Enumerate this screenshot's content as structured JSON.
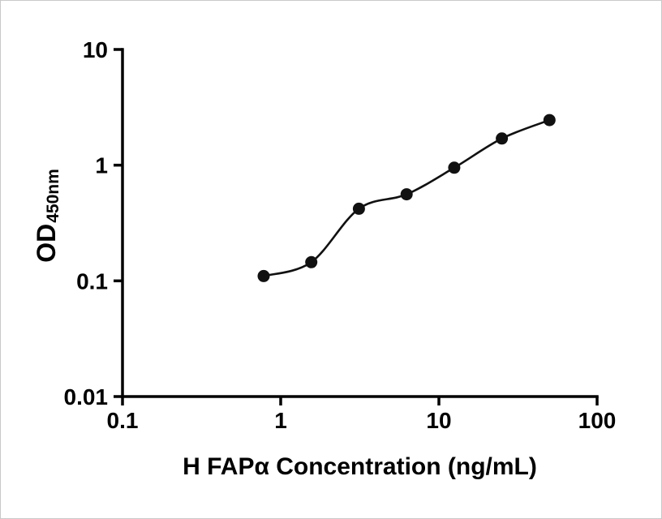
{
  "chart_data": {
    "type": "scatter",
    "xlabel": "H FAPα Concentration (ng/mL)",
    "ylabel_main": "OD",
    "ylabel_sub": "450nm",
    "xscale": "log",
    "yscale": "log",
    "xlim": [
      0.1,
      100
    ],
    "ylim": [
      0.01,
      10
    ],
    "x_ticks": [
      0.1,
      1,
      10,
      100
    ],
    "x_tick_labels": [
      "0.1",
      "1",
      "10",
      "100"
    ],
    "y_ticks": [
      0.01,
      0.1,
      1,
      10
    ],
    "y_tick_labels": [
      "0.01",
      "0.1",
      "1",
      "10"
    ],
    "grid": false,
    "legend": "none",
    "fit_style": "smooth sigmoidal (4PL-like) curve through points",
    "points": [
      {
        "x": 0.78,
        "y": 0.11
      },
      {
        "x": 1.56,
        "y": 0.145
      },
      {
        "x": 3.12,
        "y": 0.42
      },
      {
        "x": 6.25,
        "y": 0.56
      },
      {
        "x": 12.5,
        "y": 0.95
      },
      {
        "x": 25,
        "y": 1.7
      },
      {
        "x": 50,
        "y": 2.45
      }
    ],
    "marker_color": "#111111",
    "line_color": "#111111",
    "axis_color": "#000000"
  }
}
